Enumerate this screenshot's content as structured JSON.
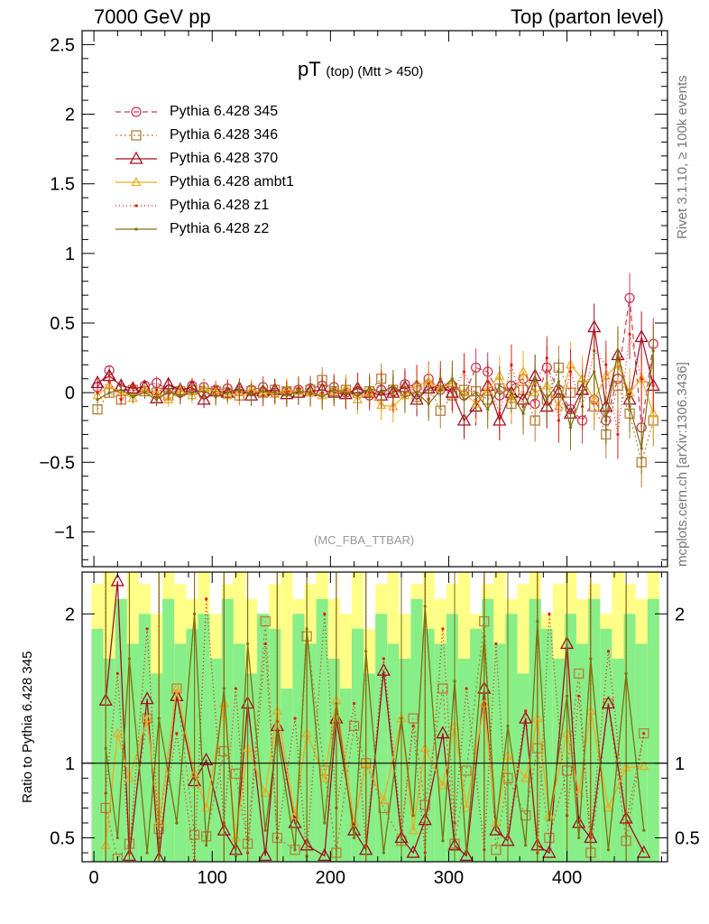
{
  "header": {
    "left": "7000 GeV pp",
    "right": "Top (parton level)"
  },
  "side_labels": {
    "rivet": "Rivet 3.1.10, ≥ 100k events",
    "mcplots": "mcplots.cern.ch [arXiv:1306.3436]"
  },
  "watermark": "(MC_FBA_TTBAR)",
  "title": {
    "main": "pT",
    "sub": "(top) (Mtt > 450)"
  },
  "ratio_ylabel": "Ratio to Pythia 6.428 345",
  "chart_data": [
    {
      "type": "line",
      "title": "pT (top) (Mtt > 450)",
      "xlabel": "",
      "ylabel": "",
      "xlim": [
        -10,
        485
      ],
      "ylim": [
        -1.25,
        2.6
      ],
      "x_ticks": [
        0,
        100,
        200,
        300,
        400
      ],
      "y_ticks": [
        -1,
        -0.5,
        0,
        0.5,
        1,
        1.5,
        2,
        2.5
      ],
      "y_tick_labels": [
        "−1",
        "−0.5",
        "0",
        "0.5",
        "1",
        "1.5",
        "2",
        "2.5"
      ],
      "legend_position": "top-left",
      "grid": false,
      "x": [
        3,
        13,
        23,
        33,
        43,
        53,
        63,
        73,
        83,
        93,
        103,
        113,
        123,
        133,
        143,
        153,
        163,
        173,
        183,
        193,
        203,
        213,
        223,
        233,
        243,
        253,
        263,
        273,
        283,
        293,
        303,
        313,
        323,
        333,
        343,
        353,
        363,
        373,
        383,
        393,
        403,
        413,
        423,
        433,
        443,
        453,
        463,
        473
      ],
      "series": [
        {
          "name": "Pythia 6.428 345",
          "color": "#c43c5a",
          "dash": "6,4",
          "marker": "circle",
          "values": [
            0.04,
            0.16,
            0.03,
            0.01,
            0.05,
            0.07,
            0.02,
            0.0,
            0.05,
            0.04,
            0.02,
            0.03,
            0.01,
            0.02,
            0.04,
            0.0,
            0.01,
            0.02,
            0.03,
            0.05,
            0.04,
            0.0,
            0.01,
            -0.02,
            0.02,
            0.01,
            0.06,
            0.04,
            0.1,
            0.02,
            0.05,
            -0.02,
            0.18,
            0.15,
            -0.02,
            0.05,
            0.1,
            -0.08,
            0.18,
            0.02,
            -0.12,
            -0.2,
            -0.05,
            -0.2,
            0.1,
            0.68,
            -0.25,
            0.35
          ]
        },
        {
          "name": "Pythia 6.428 346",
          "color": "#b5803a",
          "dash": "2,3",
          "marker": "square",
          "values": [
            -0.12,
            0.0,
            -0.05,
            0.02,
            0.01,
            0.0,
            -0.02,
            0.01,
            0.02,
            0.0,
            0.01,
            0.0,
            -0.02,
            0.01,
            0.0,
            0.02,
            0.01,
            0.0,
            0.02,
            0.09,
            0.01,
            0.02,
            0.0,
            0.01,
            0.1,
            0.02,
            0.01,
            -0.03,
            0.05,
            -0.13,
            -0.02,
            0.02,
            0.01,
            -0.05,
            0.03,
            -0.08,
            0.02,
            -0.2,
            -0.05,
            0.18,
            0.0,
            0.05,
            -0.1,
            -0.3,
            0.05,
            -0.15,
            -0.5,
            -0.2
          ]
        },
        {
          "name": "Pythia 6.428 370",
          "color": "#a01020",
          "dash": "",
          "marker": "triangle",
          "values": [
            0.07,
            0.12,
            0.05,
            0.03,
            0.04,
            -0.04,
            0.06,
            0.02,
            0.04,
            -0.05,
            0.01,
            0.0,
            0.03,
            -0.02,
            0.01,
            0.02,
            -0.01,
            0.0,
            0.01,
            0.02,
            0.0,
            -0.01,
            0.03,
            0.0,
            -0.02,
            0.0,
            0.04,
            -0.05,
            0.03,
            0.05,
            0.0,
            -0.2,
            -0.1,
            0.05,
            -0.2,
            0.0,
            -0.05,
            0.12,
            -0.1,
            0.0,
            -0.15,
            0.02,
            0.47,
            -0.1,
            0.27,
            -0.05,
            0.4,
            0.05
          ]
        },
        {
          "name": "Pythia 6.428 ambt1",
          "color": "#f0a820",
          "dash": "",
          "marker": "triangle-small",
          "values": [
            -0.02,
            0.05,
            0.0,
            -0.04,
            0.02,
            0.0,
            -0.05,
            0.01,
            -0.02,
            0.03,
            0.01,
            -0.02,
            0.0,
            0.02,
            0.0,
            -0.01,
            0.02,
            0.01,
            0.0,
            -0.02,
            0.01,
            0.03,
            -0.05,
            0.0,
            -0.09,
            -0.1,
            -0.02,
            0.05,
            0.08,
            0.03,
            0.07,
            0.0,
            -0.08,
            0.02,
            0.12,
            -0.05,
            0.15,
            0.0,
            0.05,
            -0.1,
            0.2,
            0.1,
            -0.05,
            0.12,
            0.2,
            0.0,
            0.1,
            -0.15
          ]
        },
        {
          "name": "Pythia 6.428 z1",
          "color": "#e02010",
          "dash": "1,3",
          "marker": "dot",
          "values": [
            0.0,
            0.08,
            -0.05,
            0.04,
            0.0,
            0.02,
            0.0,
            -0.03,
            0.03,
            0.0,
            -0.02,
            0.02,
            0.01,
            0.0,
            -0.02,
            0.01,
            0.0,
            0.03,
            -0.01,
            0.0,
            0.02,
            -0.02,
            0.04,
            0.0,
            0.05,
            -0.03,
            0.0,
            0.08,
            -0.05,
            0.1,
            0.0,
            0.15,
            -0.05,
            0.08,
            -0.15,
            0.2,
            -0.1,
            0.05,
            0.25,
            -0.2,
            0.15,
            -0.1,
            0.3,
            0.2,
            -0.3,
            0.42,
            0.1,
            0.05
          ]
        },
        {
          "name": "Pythia 6.428 z2",
          "color": "#807010",
          "dash": "",
          "marker": "dot",
          "values": [
            -0.05,
            0.0,
            0.02,
            -0.03,
            0.0,
            -0.05,
            0.01,
            -0.02,
            0.0,
            0.01,
            -0.03,
            0.0,
            0.02,
            -0.01,
            0.01,
            0.0,
            -0.02,
            0.01,
            0.0,
            -0.03,
            0.02,
            0.0,
            -0.02,
            0.03,
            0.0,
            0.05,
            -0.03,
            0.0,
            -0.08,
            0.02,
            0.1,
            -0.05,
            0.0,
            -0.12,
            0.05,
            0.0,
            -0.15,
            0.1,
            -0.05,
            0.08,
            -0.25,
            0.0,
            0.15,
            -0.2,
            0.3,
            -0.1,
            -0.4,
            0.3
          ]
        }
      ]
    },
    {
      "type": "line",
      "title": "",
      "xlabel": "",
      "ylabel": "Ratio to Pythia 6.428 345",
      "xlim": [
        -10,
        485
      ],
      "ylim": [
        0.34,
        2.28
      ],
      "x_ticks": [
        0,
        100,
        200,
        300,
        400
      ],
      "y_ticks": [
        0.5,
        1,
        2
      ],
      "y_tick_labels": [
        "0.5",
        "1",
        "2"
      ],
      "reference_line": 1,
      "band_colors": {
        "outer": "#ffff88",
        "inner": "#88ee88"
      },
      "band_outer_upper": [
        2.2,
        2.3,
        2.1,
        2.3,
        2.2,
        2.0,
        2.3,
        2.2,
        2.1,
        2.3,
        2.0,
        2.2,
        2.3,
        2.1,
        2.0,
        2.2,
        2.3,
        2.1,
        2.2,
        2.3,
        2.1,
        2.0,
        2.3,
        1.9,
        2.2,
        2.3,
        2.0,
        2.2,
        2.3,
        2.1,
        2.2,
        2.3,
        2.0,
        2.2,
        2.3,
        2.1,
        2.2,
        2.3,
        2.0,
        2.2,
        2.3,
        2.1,
        2.2,
        2.0,
        2.3,
        2.2,
        2.1,
        2.3
      ],
      "band_inner_upper": [
        1.9,
        1.7,
        2.1,
        1.8,
        2.0,
        1.6,
        2.1,
        1.8,
        1.9,
        2.0,
        1.7,
        2.1,
        1.8,
        1.6,
        2.0,
        1.9,
        1.5,
        2.0,
        1.8,
        2.1,
        1.7,
        1.5,
        1.9,
        1.6,
        2.0,
        1.8,
        1.7,
        2.1,
        1.9,
        1.8,
        2.0,
        1.7,
        1.9,
        2.1,
        1.8,
        2.0,
        1.6,
        2.1,
        1.9,
        1.7,
        2.0,
        1.8,
        2.1,
        1.9,
        1.7,
        2.0,
        1.8,
        2.1
      ],
      "series": [
        {
          "name": "Pythia 6.428 346",
          "color": "#b5803a",
          "dash": "2,3",
          "marker": "square",
          "values": [
            0.7,
            0.36,
            0.46,
            1.3,
            0.56,
            1.5,
            0.52,
            0.51,
            1.08,
            0.93,
            0.46,
            1.95,
            0.5,
            0.42,
            1.85,
            0.95,
            0.4,
            1.25,
            1.0,
            0.7,
            0.48,
            1.3,
            0.72,
            1.5,
            0.46,
            0.95,
            1.95,
            0.42,
            0.9,
            0.65,
            1.1,
            0.5,
            0.95,
            1.6,
            0.4,
            1.4,
            0.48,
            1.2
          ]
        },
        {
          "name": "Pythia 6.428 370",
          "color": "#a01020",
          "dash": "",
          "marker": "triangle",
          "values": [
            1.42,
            2.22,
            0.38,
            1.43,
            0.36,
            1.45,
            0.88,
            1.02,
            0.55,
            0.42,
            1.4,
            0.38,
            1.25,
            0.6,
            0.45,
            0.38,
            1.3,
            0.55,
            0.42,
            1.62,
            0.5,
            0.4,
            0.62,
            1.2,
            0.45,
            0.38,
            1.5,
            0.55,
            0.48,
            1.3,
            0.45,
            0.4,
            1.8,
            0.6,
            0.5,
            1.4,
            0.63,
            0.4
          ]
        },
        {
          "name": "Pythia 6.428 ambt1",
          "color": "#f0a820",
          "dash": "",
          "marker": "triangle-small",
          "values": [
            0.45,
            1.2,
            0.9,
            1.3,
            0.6,
            1.5,
            0.93,
            0.7,
            1.4,
            0.5,
            1.1,
            0.8,
            1.35,
            0.65,
            1.2,
            0.9,
            1.42,
            0.6,
            1.0,
            0.75,
            1.3,
            0.55,
            1.1,
            0.85,
            1.25,
            0.7,
            1.4,
            0.6,
            1.05,
            0.9,
            1.3,
            0.65,
            1.2,
            0.8,
            1.35,
            0.7,
            0.97,
            0.98
          ]
        },
        {
          "name": "Pythia 6.428 z1",
          "color": "#e02010",
          "dash": "1,3",
          "marker": "dot",
          "values": [
            0.8,
            1.6,
            0.4,
            1.9,
            0.5,
            1.2,
            0.35,
            2.1,
            0.6,
            1.5,
            0.4,
            1.8,
            0.5,
            1.3,
            0.38,
            2.0,
            0.7,
            1.4,
            0.45,
            1.7,
            0.55,
            1.25,
            0.4,
            1.9,
            0.6,
            1.5,
            0.42,
            1.8,
            0.52,
            1.35,
            0.4,
            2.0,
            0.65,
            1.45,
            0.5,
            1.75,
            0.6,
            1.2
          ]
        },
        {
          "name": "Pythia 6.428 z2",
          "color": "#807010",
          "dash": "",
          "marker": "dot",
          "values": [
            1.1,
            0.5,
            1.7,
            0.4,
            1.3,
            0.6,
            2.0,
            0.45,
            1.5,
            0.38,
            1.8,
            0.55,
            1.2,
            0.42,
            1.9,
            0.6,
            1.4,
            0.5,
            1.75,
            0.4,
            1.3,
            0.65,
            2.05,
            0.48,
            1.55,
            0.4,
            1.85,
            0.58,
            1.25,
            0.45,
            1.95,
            0.62,
            1.45,
            0.5,
            1.7,
            0.42,
            1.6,
            0.55
          ]
        }
      ],
      "ratio_x": [
        10,
        20,
        30,
        45,
        55,
        70,
        85,
        95,
        110,
        120,
        130,
        145,
        155,
        170,
        180,
        195,
        205,
        220,
        230,
        245,
        260,
        270,
        280,
        295,
        305,
        315,
        330,
        340,
        350,
        365,
        375,
        385,
        400,
        410,
        420,
        435,
        450,
        465
      ]
    }
  ]
}
